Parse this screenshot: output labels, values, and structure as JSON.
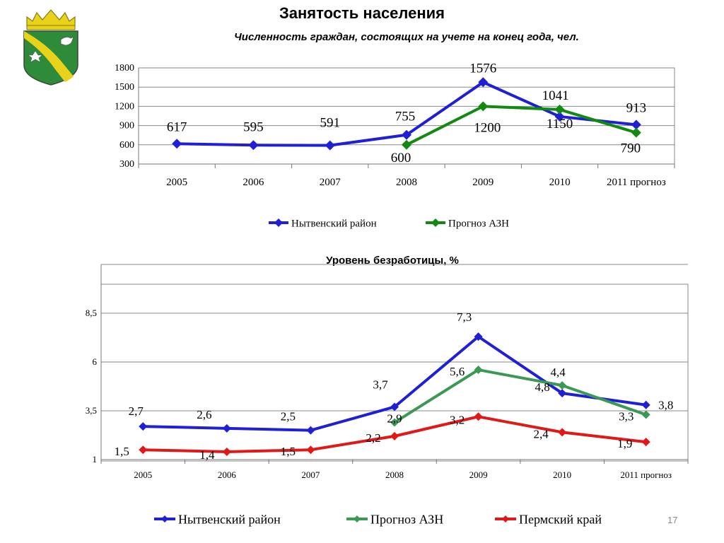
{
  "title": "Занятость населения",
  "subtitle": "Численность граждан, состоящих на учете на конец года, чел.",
  "subtitle2": "Уровень безработицы, %",
  "slide_number": "17",
  "colors": {
    "blue": "#1f1fd6",
    "green": "#128a12",
    "green2": "#3a9a55",
    "red": "#e01818",
    "emblem_green": "#2e8b3a",
    "emblem_yellow": "#e8d21a"
  },
  "chart_data": [
    {
      "type": "line",
      "categories": [
        "2005",
        "2006",
        "2007",
        "2008",
        "2009",
        "2010",
        "2011 прогноз"
      ],
      "ylim": [
        300,
        1800
      ],
      "yticks": [
        300,
        600,
        900,
        1200,
        1500,
        1800
      ],
      "ytick_labels": [
        "300",
        "600",
        "900",
        "1200",
        "1500",
        "1800"
      ],
      "grid": true,
      "legend_position": "bottom",
      "series": [
        {
          "name": "Нытвенский район",
          "color": "#1f1fd6",
          "values": [
            617,
            595,
            591,
            755,
            1576,
            1041,
            913
          ],
          "labels": [
            "617",
            "595",
            "591",
            "755",
            "1576",
            "1041",
            "913"
          ]
        },
        {
          "name": "Прогноз АЗН",
          "color": "#128a12",
          "values": [
            null,
            null,
            null,
            600,
            1200,
            1150,
            790
          ],
          "labels": [
            "",
            "",
            "",
            "600",
            "1200",
            "1150",
            "790"
          ]
        }
      ]
    },
    {
      "type": "line",
      "categories": [
        "2005",
        "2006",
        "2007",
        "2008",
        "2009",
        "2010",
        "2011 прогноз"
      ],
      "ylim": [
        1,
        11
      ],
      "yticks": [
        1,
        3.5,
        6,
        8.5
      ],
      "ytick_labels": [
        "1",
        "3,5",
        "6",
        "8,5"
      ],
      "grid": true,
      "legend_position": "bottom",
      "series": [
        {
          "name": "Нытвенский район",
          "color": "#1f1fd6",
          "values": [
            2.7,
            2.6,
            2.5,
            3.7,
            7.3,
            4.4,
            3.8
          ],
          "labels": [
            "2,7",
            "2,6",
            "2,5",
            "3,7",
            "7,3",
            "4,4",
            "3,8"
          ]
        },
        {
          "name": "Прогноз АЗН",
          "color": "#3a9a55",
          "values": [
            null,
            null,
            null,
            2.9,
            5.6,
            4.8,
            3.3
          ],
          "labels": [
            "",
            "",
            "",
            "2,9",
            "5,6",
            "4,8",
            "3,3"
          ]
        },
        {
          "name": "Пермский край",
          "color": "#e01818",
          "values": [
            1.5,
            1.4,
            1.5,
            2.2,
            3.2,
            2.4,
            1.9
          ],
          "labels": [
            "1,5",
            "1,4",
            "1,5",
            "2,2",
            "3,2",
            "2,4",
            "1,9"
          ]
        }
      ]
    }
  ]
}
